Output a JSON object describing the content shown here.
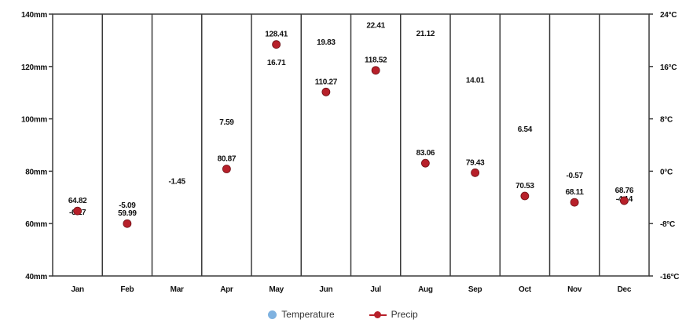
{
  "chart_data": {
    "type": "line",
    "categories": [
      "Jan",
      "Feb",
      "Mar",
      "Apr",
      "May",
      "Jun",
      "Jul",
      "Aug",
      "Sep",
      "Oct",
      "Nov",
      "Dec"
    ],
    "series": [
      {
        "name": "Temperature",
        "axis": "right",
        "color": "#7fb2e0",
        "values": [
          -6.17,
          -5.09,
          -1.45,
          7.59,
          16.71,
          19.83,
          22.41,
          21.12,
          14.01,
          6.54,
          -0.57,
          -4.14
        ],
        "labels": [
          "-6.17",
          "-5.09",
          "-1.45",
          "7.59",
          "16.71",
          "19.83",
          "22.41",
          "21.12",
          "14.01",
          "6.54",
          "-0.57",
          "-4.14"
        ]
      },
      {
        "name": "Precip",
        "axis": "left",
        "color": "#b7202a",
        "values": [
          64.82,
          59.99,
          null,
          80.87,
          128.41,
          110.27,
          118.52,
          83.06,
          79.43,
          70.53,
          68.11,
          68.76
        ],
        "labels": [
          "64.82",
          "59.99",
          "",
          "80.87",
          "128.41",
          "110.27",
          "118.52",
          "83.06",
          "79.43",
          "70.53",
          "68.11",
          "68.76"
        ]
      }
    ],
    "ylim_left": [
      40,
      140
    ],
    "yticks_left": [
      "40mm",
      "60mm",
      "80mm",
      "100mm",
      "120mm",
      "140mm"
    ],
    "ylim_right": [
      -16,
      24
    ],
    "yticks_right": [
      "-16°C",
      "-8°C",
      "0°C",
      "8°C",
      "16°C",
      "24°C"
    ],
    "grid": "vertical",
    "legend": "bottom-center"
  },
  "legend": {
    "temperature_label": "Temperature",
    "precip_label": "Precip"
  }
}
